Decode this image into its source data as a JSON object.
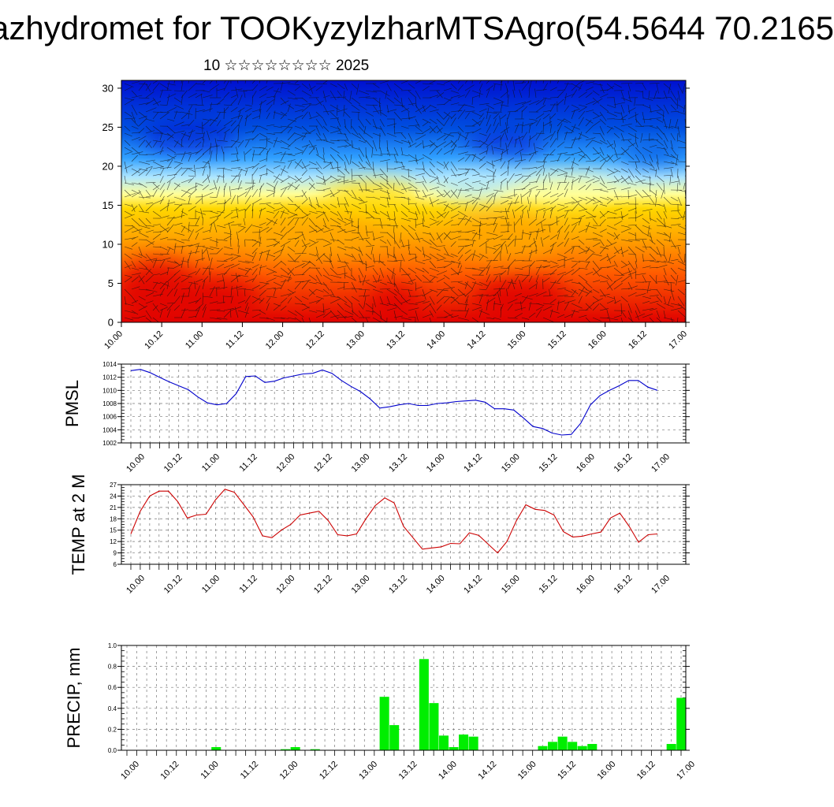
{
  "title": "azhydromet for TOOKyzylzharMTSAgro(54.5644 70.2165",
  "subtitle": "10 ☆☆☆☆☆☆☆☆ 2025",
  "chart_data": [
    {
      "type": "heatmap",
      "name": "vertical-cross-section",
      "ylim": [
        0,
        31
      ],
      "y_ticks": [
        "0",
        "5",
        "10",
        "15",
        "20",
        "25",
        "30"
      ],
      "x_ticks": [
        "10.00",
        "10.12",
        "11.00",
        "11.12",
        "12.00",
        "12.12",
        "13.00",
        "13.12",
        "14.00",
        "14.12",
        "15.00",
        "15.12",
        "16.00",
        "16.12",
        "17.00"
      ],
      "colormap": [
        "#e00000",
        "#ff5a00",
        "#ffa500",
        "#ffd700",
        "#ffff99",
        "#aee6ff",
        "#30a0ff",
        "#0050e0",
        "#0010d0"
      ]
    },
    {
      "type": "line",
      "ylabel": "PMSL",
      "ylim": [
        1002,
        1014
      ],
      "y_ticks": [
        "1002",
        "1004",
        "1006",
        "1008",
        "1010",
        "1012",
        "1014"
      ],
      "x_ticks": [
        "10.00",
        "10.12",
        "11.00",
        "11.12",
        "12.00",
        "12.12",
        "13.00",
        "13.12",
        "14.00",
        "14.12",
        "15.00",
        "15.12",
        "16.00",
        "16.12",
        "17.00"
      ],
      "color": "#0000cc",
      "values": [
        1013,
        1013.2,
        1012.7,
        1012,
        1011.3,
        1010.7,
        1010.1,
        1009,
        1008.1,
        1007.8,
        1008,
        1009.5,
        1012.1,
        1012.2,
        1011.2,
        1011.4,
        1011.9,
        1012.2,
        1012.5,
        1012.6,
        1013.1,
        1012.6,
        1011.5,
        1010.6,
        1009.8,
        1008.7,
        1007.3,
        1007.5,
        1007.8,
        1008,
        1007.7,
        1007.7,
        1008,
        1008.1,
        1008.3,
        1008.4,
        1008.5,
        1008.2,
        1007.2,
        1007.2,
        1007,
        1005.8,
        1004.5,
        1004.2,
        1003.5,
        1003.2,
        1003.3,
        1005,
        1007.8,
        1009.2,
        1010,
        1010.7,
        1011.5,
        1011.5,
        1010.5,
        1010
      ]
    },
    {
      "type": "line",
      "ylabel": "TEMP at 2 M",
      "ylim": [
        6,
        27
      ],
      "y_ticks": [
        "6",
        "9",
        "12",
        "15",
        "18",
        "21",
        "24",
        "27"
      ],
      "x_ticks": [
        "10.00",
        "10.12",
        "11.00",
        "11.12",
        "12.00",
        "12.12",
        "13.00",
        "13.12",
        "14.00",
        "14.12",
        "15.00",
        "15.12",
        "16.00",
        "16.12",
        "17.00"
      ],
      "color": "#cc0000",
      "values": [
        14,
        20,
        24,
        25.3,
        25.3,
        22.5,
        18.2,
        19,
        19.2,
        23,
        25.8,
        25,
        21.8,
        18.5,
        13.5,
        13,
        15,
        16.5,
        19,
        19.5,
        20,
        17.5,
        13.8,
        13.5,
        14,
        18,
        21.5,
        23.5,
        22.2,
        16,
        13,
        10,
        10.3,
        10.6,
        11.5,
        11.4,
        14.3,
        13.6,
        11.3,
        9,
        12,
        17.5,
        21.7,
        20.5,
        20.2,
        19,
        14.6,
        13.2,
        13.4,
        14,
        14.5,
        18.2,
        19.5,
        16,
        11.8,
        13.8,
        14
      ]
    },
    {
      "type": "bar",
      "ylabel": "PRECIP, mm",
      "ylim": [
        0,
        1.0
      ],
      "y_ticks": [
        "0.0",
        "0.2",
        "0.4",
        "0.6",
        "0.8",
        "1.0"
      ],
      "x_ticks": [
        "10.00",
        "10.12",
        "11.00",
        "11.12",
        "12.00",
        "12.12",
        "13.00",
        "13.12",
        "14.00",
        "14.12",
        "15.00",
        "15.12",
        "16.00",
        "16.12",
        "17.00"
      ],
      "color": "#00ee00",
      "values": [
        0,
        0,
        0,
        0,
        0,
        0,
        0,
        0,
        0,
        0.03,
        0,
        0,
        0,
        0,
        0,
        0,
        0.01,
        0.03,
        0,
        0.01,
        0,
        0,
        0,
        0,
        0,
        0,
        0.51,
        0.24,
        0,
        0,
        0.87,
        0.45,
        0.14,
        0.03,
        0.15,
        0.13,
        0,
        0,
        0,
        0,
        0,
        0,
        0.04,
        0.08,
        0.13,
        0.08,
        0.04,
        0.06,
        0,
        0,
        0,
        0,
        0,
        0,
        0,
        0.06,
        0.5
      ]
    }
  ]
}
